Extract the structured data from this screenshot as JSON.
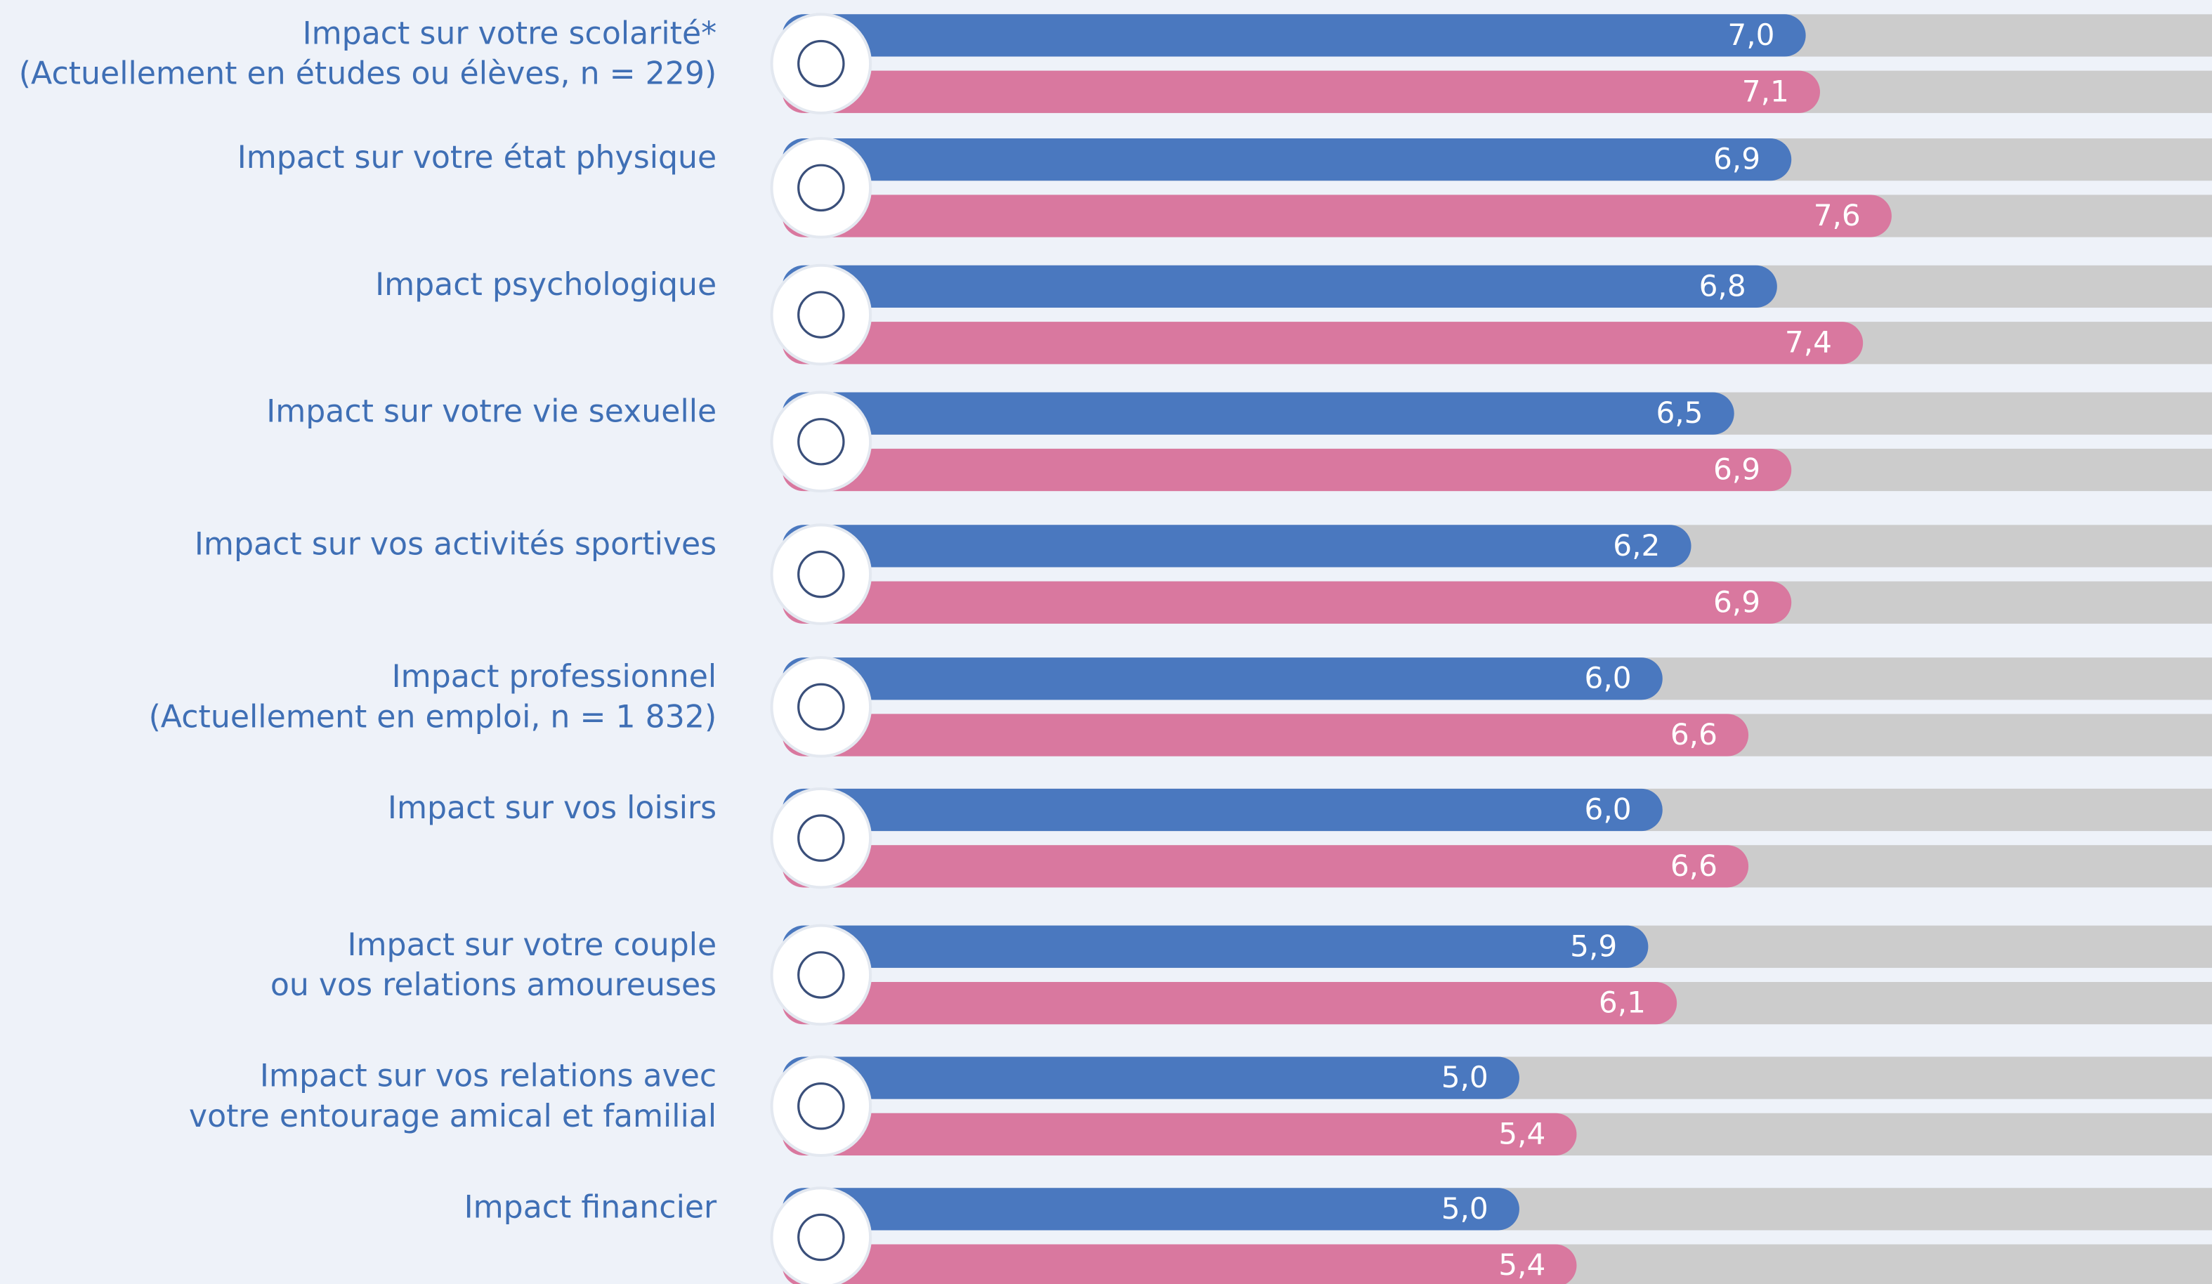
{
  "chart_data": {
    "type": "barh",
    "categories": [
      [
        "Impact sur votre scolarité*",
        "(Actuellement en études ou élèves, n = 229)"
      ],
      [
        "Impact sur votre état physique"
      ],
      [
        "Impact psychologique"
      ],
      [
        "Impact sur votre vie sexuelle"
      ],
      [
        "Impact sur vos activités sportives"
      ],
      [
        "Impact professionnel",
        "(Actuellement en emploi, n = 1 832)"
      ],
      [
        "Impact sur vos loisirs"
      ],
      [
        "Impact sur votre couple",
        "ou vos relations amoureuses"
      ],
      [
        "Impact sur vos relations avec",
        "votre entourage amical et familial"
      ],
      [
        "Impact financier"
      ]
    ],
    "series": [
      {
        "color": "#4a78bf",
        "values": [
          7.0,
          6.9,
          6.8,
          6.5,
          6.2,
          6.0,
          6.0,
          5.9,
          5.0,
          5.0
        ],
        "value_labels": [
          "7,0",
          "6,9",
          "6,8",
          "6,5",
          "6,2",
          "6,0",
          "6,0",
          "5,9",
          "5,0",
          "5,0"
        ]
      },
      {
        "color": "#d9789f",
        "values": [
          7.1,
          7.6,
          7.4,
          6.9,
          6.9,
          6.6,
          6.6,
          6.1,
          5.4,
          5.4
        ],
        "value_labels": [
          "7,1",
          "7,6",
          "7,4",
          "6,9",
          "6,9",
          "6,6",
          "6,6",
          "6,1",
          "5,4",
          "5,4"
        ]
      }
    ],
    "xlim": [
      0,
      10
    ],
    "track_color": "#cccccc"
  }
}
